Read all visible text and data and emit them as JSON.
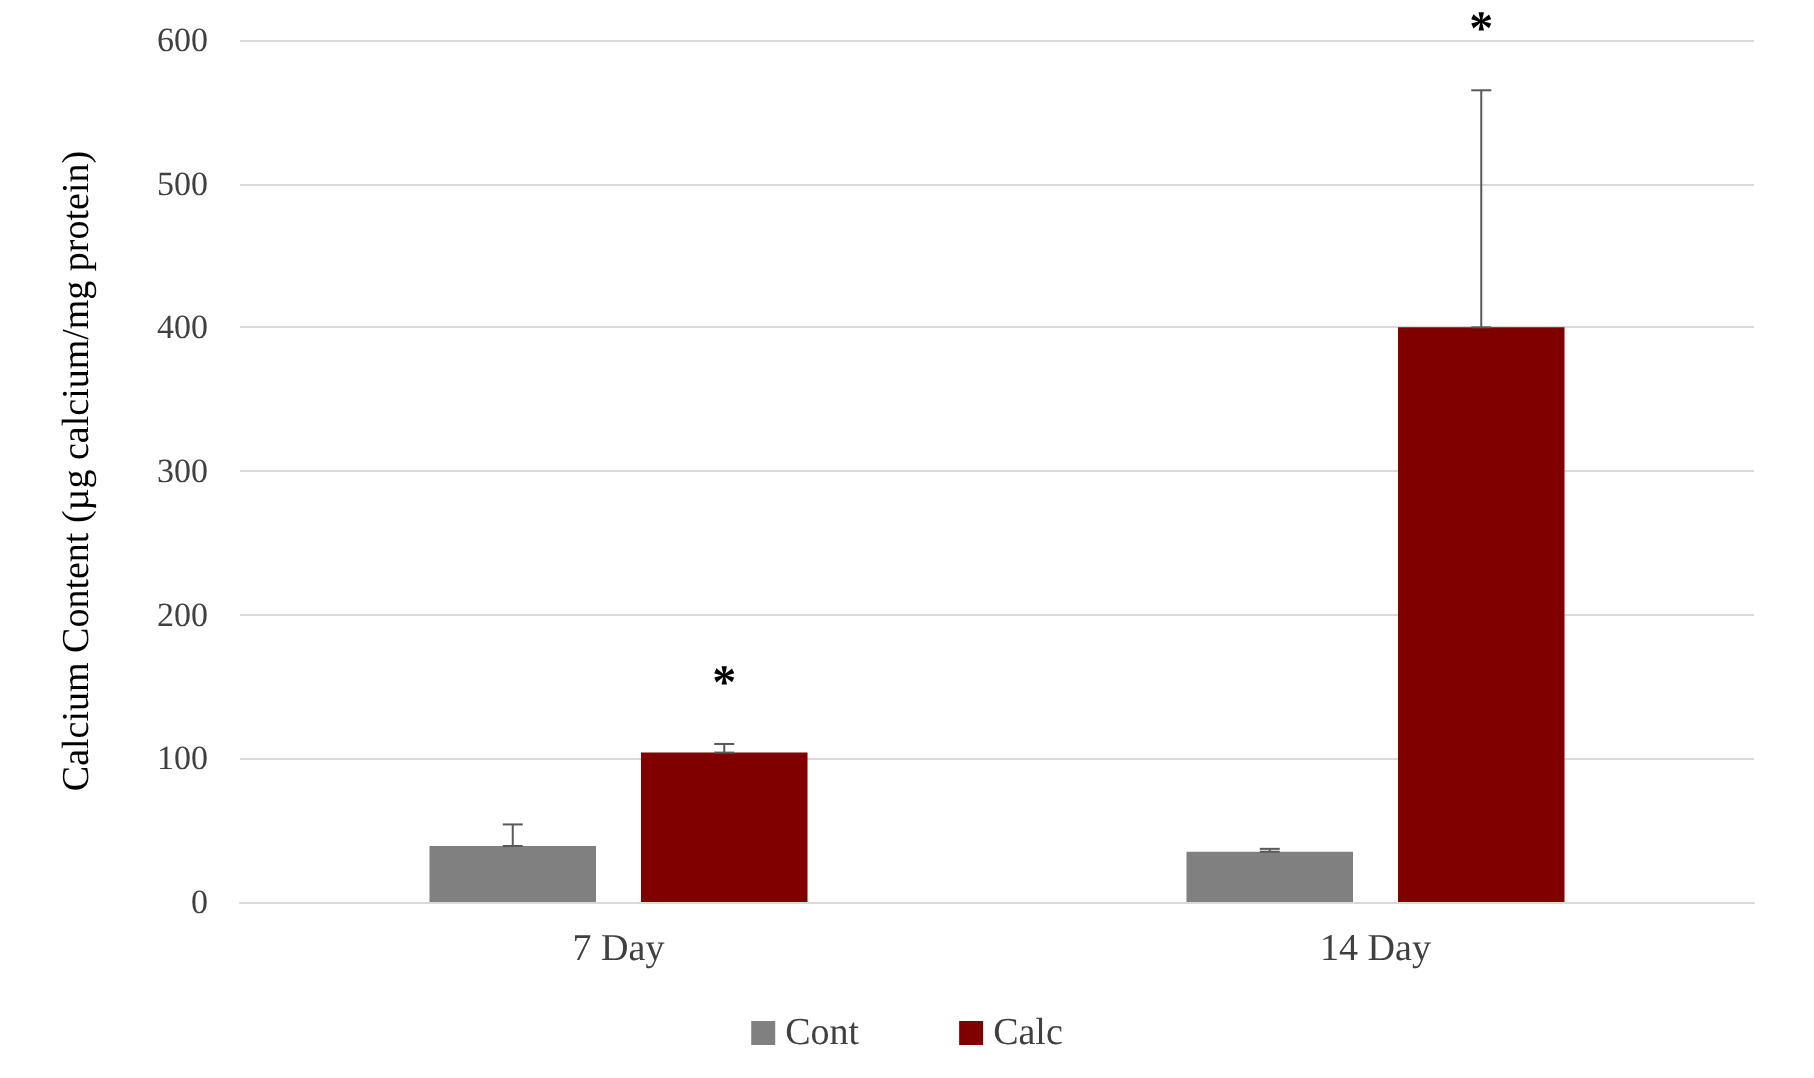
{
  "chart_data": {
    "type": "bar",
    "ylabel": "Calcium Content (µg calcium/mg protein)",
    "categories": [
      "7 Day",
      "14 Day"
    ],
    "series": [
      {
        "name": "Cont",
        "color": "#808080",
        "values": [
          39,
          35
        ],
        "errors": [
          [
            39,
            54
          ],
          [
            35,
            37
          ]
        ]
      },
      {
        "name": "Calc",
        "color": "#800000",
        "values": [
          104,
          400
        ],
        "errors": [
          [
            104,
            110
          ],
          [
            400,
            565
          ]
        ]
      }
    ],
    "ylim": [
      0,
      600
    ],
    "yticks": [
      0,
      100,
      200,
      300,
      400,
      500,
      600
    ],
    "grid": "y",
    "legend": "bottom",
    "annotations": [
      "*",
      "*"
    ]
  }
}
